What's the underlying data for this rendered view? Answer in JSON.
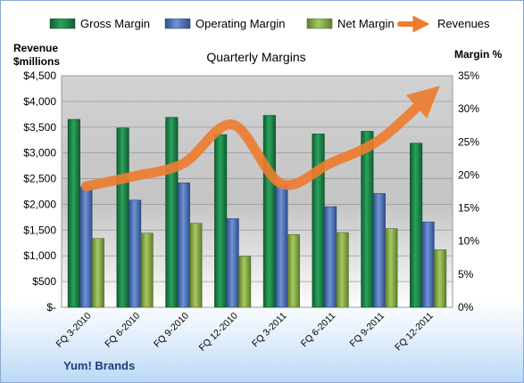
{
  "chart_data": {
    "type": "bar",
    "title": "Quarterly Margins",
    "footer": "Yum! Brands",
    "left_axis": {
      "title_line1": "Revenue",
      "title_line2": "$millions",
      "range": [
        0,
        4500
      ],
      "ticks": [
        0,
        500,
        1000,
        1500,
        2000,
        2500,
        3000,
        3500,
        4000,
        4500
      ],
      "tick_labels": [
        "$-",
        "$500",
        "$1,000",
        "$1,500",
        "$2,000",
        "$2,500",
        "$3,000",
        "$3,500",
        "$4,000",
        "$4,500"
      ]
    },
    "right_axis": {
      "title": "Margin %",
      "range": [
        0,
        35
      ],
      "ticks": [
        0,
        5,
        10,
        15,
        20,
        25,
        30,
        35
      ],
      "tick_labels": [
        "0%",
        "5%",
        "10%",
        "15%",
        "20%",
        "25%",
        "30%",
        "35%"
      ]
    },
    "categories": [
      "FQ 3-2010",
      "FQ 6-2010",
      "FQ 9-2010",
      "FQ 12-2010",
      "FQ 3-2011",
      "FQ 6-2011",
      "FQ 9-2011",
      "FQ 12-2011"
    ],
    "series": [
      {
        "name": "Gross Margin",
        "axis": "right",
        "kind": "bar",
        "color": "#1e8a4c",
        "values": [
          28.4,
          27.1,
          28.7,
          26.1,
          29.0,
          26.2,
          26.6,
          24.8
        ]
      },
      {
        "name": "Operating Margin",
        "axis": "right",
        "kind": "bar",
        "color": "#4f74b8",
        "values": [
          18.2,
          16.2,
          18.8,
          13.4,
          18.6,
          15.2,
          17.2,
          12.9
        ]
      },
      {
        "name": "Net Margin",
        "axis": "right",
        "kind": "bar",
        "color": "#86ad45",
        "values": [
          10.4,
          11.2,
          12.7,
          7.7,
          11.0,
          11.3,
          11.9,
          8.7
        ]
      },
      {
        "name": "Revenues",
        "axis": "left",
        "kind": "line",
        "color": "#ed7d31",
        "values": [
          2350,
          2550,
          2800,
          3550,
          2400,
          2800,
          3250,
          4100
        ]
      }
    ],
    "grid": true,
    "legend_position": "top"
  }
}
